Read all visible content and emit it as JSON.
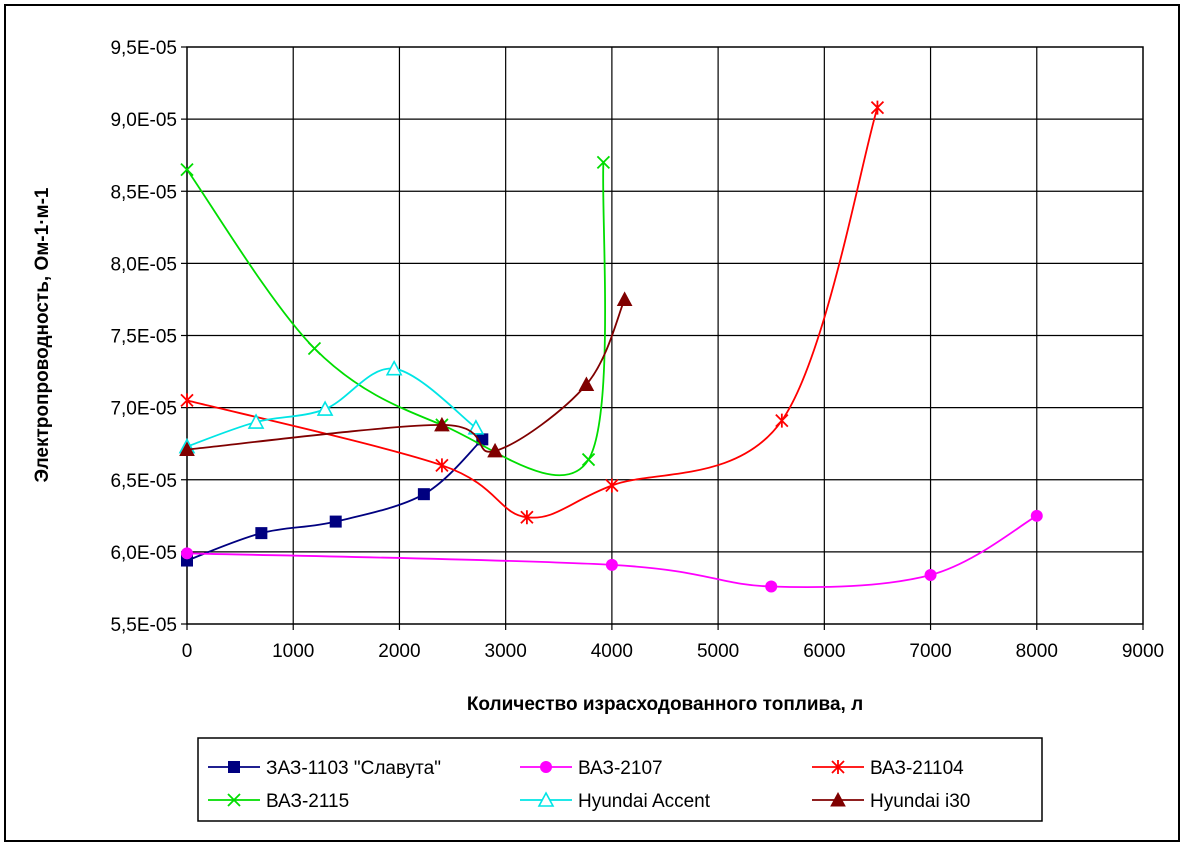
{
  "chart_data": {
    "type": "line",
    "xlabel": "Количество израсходованного топлива, л",
    "ylabel": "Электропроводность, Ом-1·м-1",
    "xlim": [
      0,
      9000
    ],
    "ylim": [
      5.5e-05,
      9.5e-05
    ],
    "x_ticks": [
      "0",
      "1000",
      "2000",
      "3000",
      "4000",
      "5000",
      "6000",
      "7000",
      "8000",
      "9000"
    ],
    "y_ticks": [
      "5,5E-05",
      "6,0E-05",
      "6,5E-05",
      "7,0E-05",
      "7,5E-05",
      "8,0E-05",
      "8,5E-05",
      "9,0E-05",
      "9,5E-05"
    ],
    "grid": true,
    "legend_position": "bottom",
    "series": [
      {
        "name": "ЗАЗ-1103 \"Славута\"",
        "color": "#000080",
        "marker": "square",
        "points": [
          [
            0,
            5.94e-05
          ],
          [
            700,
            6.13e-05
          ],
          [
            1400,
            6.21e-05
          ],
          [
            2230,
            6.4e-05
          ],
          [
            2780,
            6.78e-05
          ]
        ]
      },
      {
        "name": "ВАЗ-2107",
        "color": "#ff00ff",
        "marker": "circle",
        "points": [
          [
            0,
            5.99e-05
          ],
          [
            4000,
            5.91e-05
          ],
          [
            5500,
            5.76e-05
          ],
          [
            7000,
            5.84e-05
          ],
          [
            8000,
            6.25e-05
          ]
        ]
      },
      {
        "name": "ВАЗ-21104",
        "color": "#ff0000",
        "marker": "star",
        "points": [
          [
            0,
            7.05e-05
          ],
          [
            2400,
            6.6e-05
          ],
          [
            3200,
            6.24e-05
          ],
          [
            4000,
            6.46e-05
          ],
          [
            5600,
            6.91e-05
          ],
          [
            6500,
            9.08e-05
          ]
        ]
      },
      {
        "name": "ВАЗ-2115",
        "color": "#00dd00",
        "marker": "x",
        "points": [
          [
            0,
            8.65e-05
          ],
          [
            1200,
            7.41e-05
          ],
          [
            2400,
            6.88e-05
          ],
          [
            3780,
            6.64e-05
          ],
          [
            3920,
            8.7e-05
          ]
        ]
      },
      {
        "name": "Hyundai Accent",
        "color": "#00e5e5",
        "marker": "triangle-open",
        "points": [
          [
            0,
            6.73e-05
          ],
          [
            650,
            6.9e-05
          ],
          [
            1300,
            6.99e-05
          ],
          [
            1950,
            7.27e-05
          ],
          [
            2720,
            6.86e-05
          ]
        ]
      },
      {
        "name": "Hyundai i30",
        "color": "#800000",
        "marker": "triangle",
        "points": [
          [
            0,
            6.71e-05
          ],
          [
            2400,
            6.88e-05
          ],
          [
            2900,
            6.7e-05
          ],
          [
            3760,
            7.16e-05
          ],
          [
            4120,
            7.75e-05
          ]
        ]
      }
    ]
  }
}
